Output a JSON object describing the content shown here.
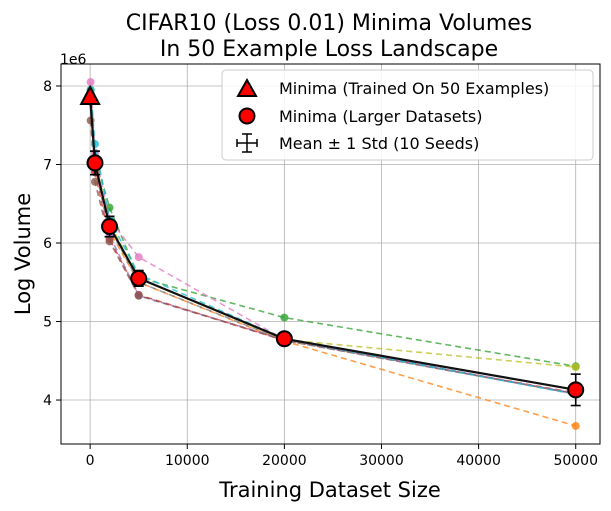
{
  "chart_data": {
    "type": "line",
    "title_lines": [
      "CIFAR10 (Loss 0.01) Minima Volumes",
      "In 50 Example Loss Landscape"
    ],
    "xlabel": "Training Dataset Size",
    "ylabel": "Log Volume",
    "y_scale_label": "1e6",
    "xlim": [
      -3000,
      52500
    ],
    "ylim": [
      3440000,
      8280000
    ],
    "x_ticks": [
      0,
      10000,
      20000,
      30000,
      40000,
      50000
    ],
    "x_tick_labels": [
      "0",
      "10000",
      "20000",
      "30000",
      "40000",
      "50000"
    ],
    "y_ticks": [
      4000000,
      5000000,
      6000000,
      7000000,
      8000000
    ],
    "y_tick_labels": [
      "4",
      "5",
      "6",
      "7",
      "8"
    ],
    "grid": true,
    "legend_position": "top-right",
    "legend": {
      "trained": "Minima (Trained On 50 Examples)",
      "larger": "Minima (Larger Datasets)",
      "mean": "Mean ± 1 Std (10 Seeds)"
    },
    "seed_x": [
      50,
      500,
      2000,
      5000,
      20000,
      50000
    ],
    "seed_series": [
      {
        "name": "seed-1",
        "color": "#1f77b4",
        "values": [
          7900000,
          7050000,
          6200000,
          5550000,
          4780000,
          4080000
        ]
      },
      {
        "name": "seed-2",
        "color": "#ff7f0e",
        "values": [
          7850000,
          6950000,
          6150000,
          5500000,
          4750000,
          3670000
        ]
      },
      {
        "name": "seed-3",
        "color": "#2ca02c",
        "values": [
          7950000,
          7100000,
          6450000,
          5560000,
          5050000,
          4430000
        ]
      },
      {
        "name": "seed-4",
        "color": "#d62728",
        "values": [
          7800000,
          6900000,
          6050000,
          5340000,
          4760000,
          4090000
        ]
      },
      {
        "name": "seed-5",
        "color": "#9467bd",
        "values": [
          7850000,
          7000000,
          6100000,
          5330000,
          4770000,
          4080000
        ]
      },
      {
        "name": "seed-6",
        "color": "#8c564b",
        "values": [
          7560000,
          6780000,
          6020000,
          5330000,
          4760000,
          4080000
        ]
      },
      {
        "name": "seed-7",
        "color": "#e377c2",
        "values": [
          8050000,
          7150000,
          6300000,
          5820000,
          4770000,
          4080000
        ]
      },
      {
        "name": "seed-8",
        "color": "#7f7f7f",
        "values": [
          7900000,
          7000000,
          6200000,
          5500000,
          4760000,
          4080000
        ]
      },
      {
        "name": "seed-9",
        "color": "#bcbd22",
        "values": [
          7850000,
          7050000,
          6250000,
          5550000,
          4770000,
          4420000
        ]
      },
      {
        "name": "seed-10",
        "color": "#17becf",
        "values": [
          7950000,
          7260000,
          6300000,
          5600000,
          4780000,
          4070000
        ]
      }
    ],
    "trained_minima": {
      "x": 0,
      "y": 7860000
    },
    "mean": {
      "x": [
        500,
        2000,
        5000,
        20000,
        50000
      ],
      "y": [
        7020000,
        6210000,
        5550000,
        4780000,
        4130000
      ],
      "std": [
        150000,
        130000,
        100000,
        60000,
        200000
      ]
    }
  }
}
